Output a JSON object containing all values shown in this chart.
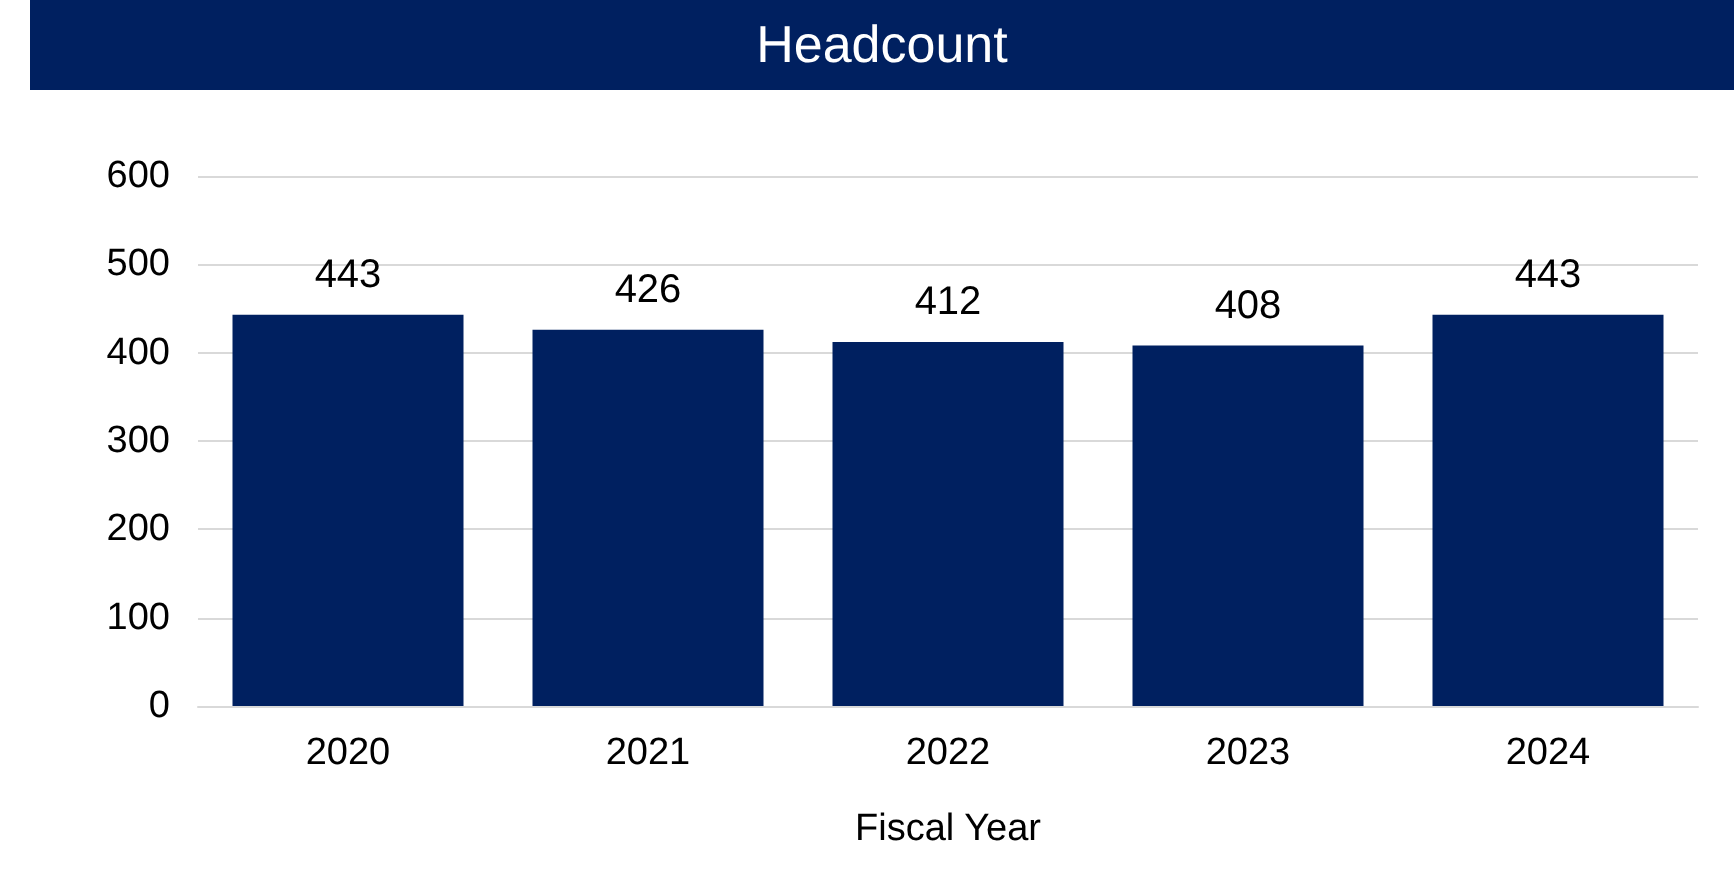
{
  "chart_data": {
    "type": "bar",
    "title": "Headcount",
    "xlabel": "Fiscal Year",
    "categories": [
      "2020",
      "2021",
      "2022",
      "2023",
      "2024"
    ],
    "values": [
      443,
      426,
      412,
      408,
      443
    ],
    "color": "#002060",
    "ylim": [
      0,
      600
    ],
    "yticks": [
      0,
      100,
      200,
      300,
      400,
      500,
      600
    ],
    "grid": "y",
    "data_labels": true
  }
}
